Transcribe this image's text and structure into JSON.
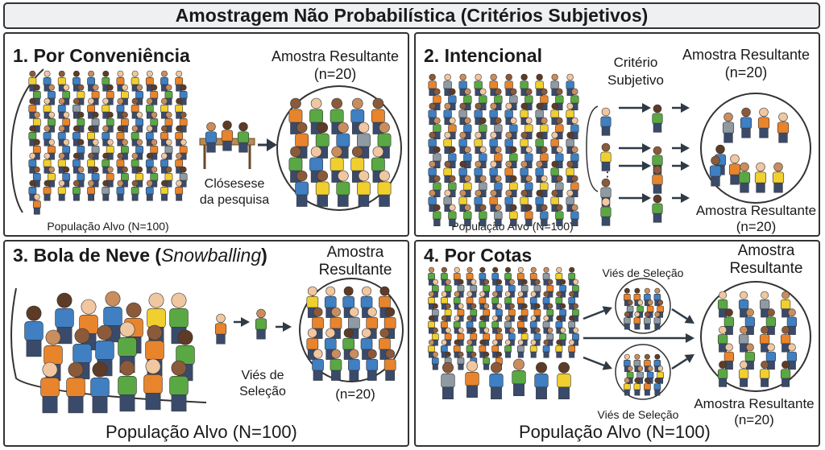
{
  "title": "Amostragem Não Probabilística (Critérios Subjetivos)",
  "colors": {
    "blue": "#3f7fc2",
    "orange": "#e8842c",
    "green": "#5aa843",
    "yellow": "#f1cf2e",
    "gray": "#8f9aa3",
    "dark": "#2f3a45",
    "skin": [
      "#f0c7a0",
      "#c98d5e",
      "#8a5a3a",
      "#5e3b26"
    ]
  },
  "panels": {
    "p1": {
      "title": "1. Por Conveniência",
      "result_label": "Amostra Resultante",
      "result_n": "(n=20)",
      "table_label_1": "Clósesese",
      "table_label_2": "da pesquisa",
      "population_label": "População Alvo (N=100)"
    },
    "p2": {
      "title": "2. Intencional",
      "criterion_1": "Critério",
      "criterion_2": "Subjetivo",
      "result_top_label": "Amostra Resultante",
      "result_top_n": "(n=20)",
      "result_bottom_label": "Amostra Resultante",
      "result_bottom_n": "(n=20)",
      "population_label": "População Alvo (N=100)",
      "dots": "⋮"
    },
    "p3": {
      "title_main": "3. Bola de Neve (",
      "title_italic": "Snowballing",
      "title_end": ")",
      "result_label_1": "Amostra",
      "result_label_2": "Resultante",
      "bias_1": "Viés de",
      "bias_2": "Seleção",
      "result_n": "(n=20)",
      "population_label": "População Alvo (N=100)"
    },
    "p4": {
      "title": "4. Por Cotas",
      "bias_top": "Viés de Seleção",
      "bias_bottom": "Viés de Seleção",
      "result_top_1": "Amostra",
      "result_top_2": "Resultante",
      "result_bottom_label": "Amostra Resultante",
      "result_bottom_n": "(n=20)",
      "population_label": "População Alvo (N=100)"
    }
  }
}
